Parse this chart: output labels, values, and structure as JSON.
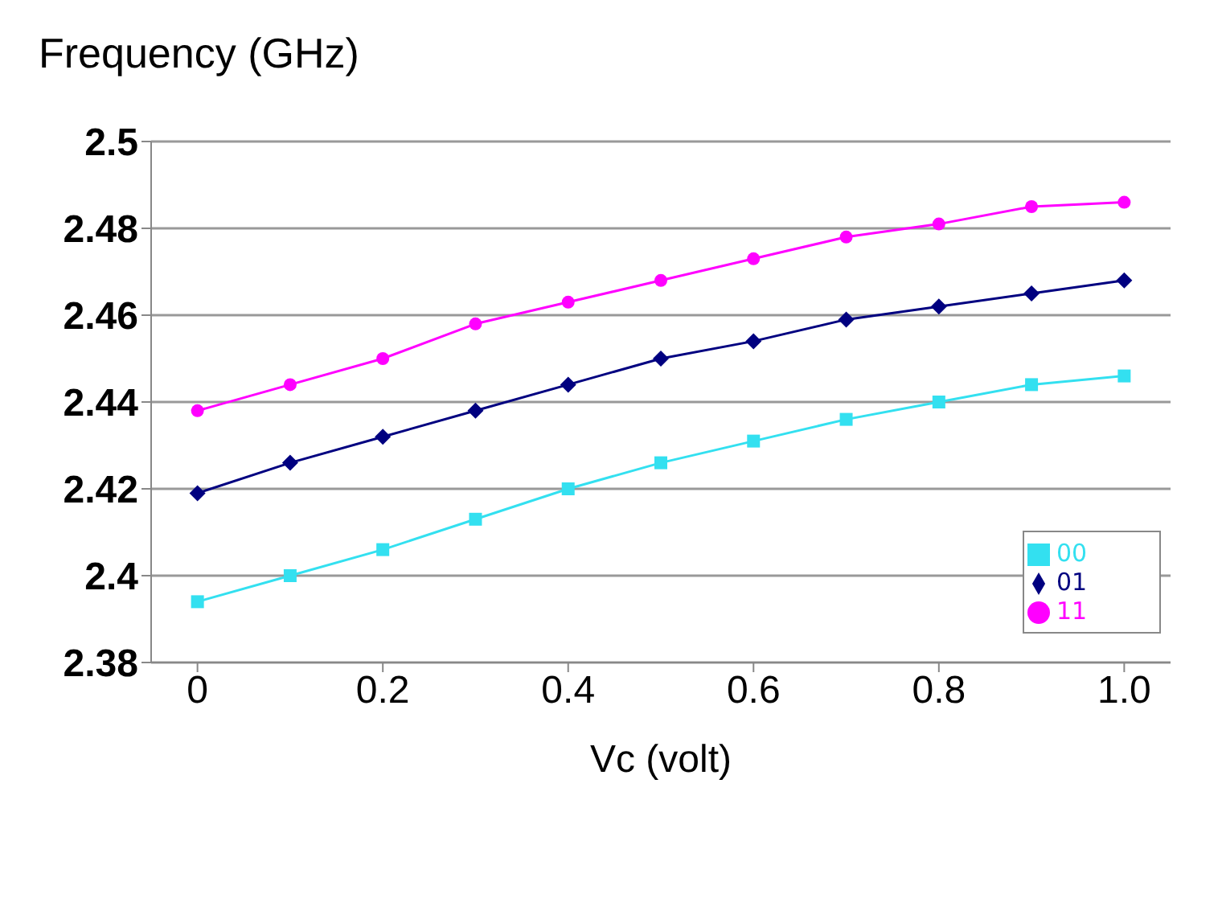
{
  "chart_data": {
    "type": "line",
    "ylabel": "Frequency (GHz)",
    "xlabel": "Vc (volt)",
    "x": [
      0,
      0.1,
      0.2,
      0.3,
      0.4,
      0.5,
      0.6,
      0.7,
      0.8,
      0.9,
      1.0
    ],
    "series": [
      {
        "name": "00",
        "color": "#33e0f0",
        "marker": "square",
        "values": [
          2.394,
          2.4,
          2.406,
          2.413,
          2.42,
          2.426,
          2.431,
          2.436,
          2.44,
          2.444,
          2.446
        ]
      },
      {
        "name": "01",
        "color": "#000080",
        "marker": "diamond",
        "values": [
          2.419,
          2.426,
          2.432,
          2.438,
          2.444,
          2.45,
          2.454,
          2.459,
          2.462,
          2.465,
          2.468
        ]
      },
      {
        "name": "11",
        "color": "#ff00ff",
        "marker": "circle",
        "values": [
          2.438,
          2.444,
          2.45,
          2.458,
          2.463,
          2.468,
          2.473,
          2.478,
          2.481,
          2.485,
          2.486
        ]
      }
    ],
    "xlim": [
      -0.05,
      1.05
    ],
    "xticks": [
      0,
      0.2,
      0.4,
      0.6,
      0.8,
      {
        "value": 1,
        "label": "1.0"
      }
    ],
    "ylim": [
      2.38,
      2.5
    ],
    "yticks": [
      2.38,
      2.4,
      2.42,
      2.44,
      2.46,
      2.48,
      2.5
    ],
    "grid": "y",
    "legend": "bottom right",
    "line_style": "solid"
  }
}
